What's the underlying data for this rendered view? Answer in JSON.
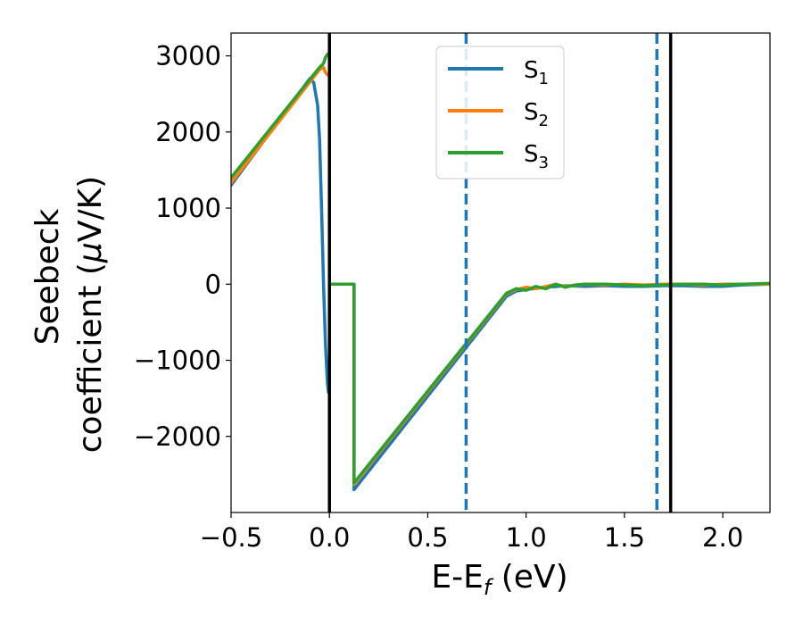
{
  "chart_data": {
    "type": "line",
    "title": "",
    "xlabel": "E-E",
    "xlabel_sub": "f",
    "xlabel_unit": " (eV)",
    "ylabel_line1": "Seebeck",
    "ylabel_line2": "coefficient  (",
    "ylabel_mu": "μ",
    "ylabel_unit": "V/K)",
    "xlim": [
      -0.5,
      2.24
    ],
    "ylim": [
      -3000,
      3300
    ],
    "x_ticks": [
      -0.5,
      0.0,
      0.5,
      1.0,
      1.5,
      2.0
    ],
    "x_tick_labels": [
      "−0.5",
      "0.0",
      "0.5",
      "1.0",
      "1.5",
      "2.0"
    ],
    "y_ticks": [
      -2000,
      -1000,
      0,
      1000,
      2000,
      3000
    ],
    "y_tick_labels": [
      "−2000",
      "−1000",
      "0",
      "1000",
      "2000",
      "3000"
    ],
    "grid": false,
    "legend_position": "top-center",
    "vlines": [
      {
        "x": 0.0,
        "style": "solid",
        "color": "#000000"
      },
      {
        "x": 1.735,
        "style": "solid",
        "color": "#000000"
      },
      {
        "x": 0.695,
        "style": "dashed",
        "color": "#1f77b4"
      },
      {
        "x": 1.665,
        "style": "dashed",
        "color": "#1f77b4"
      }
    ],
    "series": [
      {
        "name": "S",
        "sub": "1",
        "color": "#1f77b4",
        "x": [
          -0.5,
          -0.1,
          -0.08,
          -0.06,
          -0.05,
          -0.04,
          -0.03,
          -0.02,
          -0.01,
          -0.005
        ],
        "y": [
          1300,
          2700,
          2650,
          2350,
          1900,
          1000,
          0,
          -800,
          -1300,
          -1420
        ],
        "x2": [
          0.0,
          0.125,
          0.125,
          0.9,
          0.95,
          1.0,
          1.1,
          1.2,
          1.3,
          1.4,
          1.5,
          1.6,
          1.7,
          1.8,
          1.9,
          2.0,
          2.1,
          2.24
        ],
        "y2": [
          0,
          0,
          -2700,
          -160,
          -90,
          -70,
          -40,
          -20,
          -30,
          -20,
          -30,
          -30,
          -20,
          -20,
          -30,
          -30,
          -10,
          0
        ]
      },
      {
        "name": "S",
        "sub": "2",
        "color": "#ff7f0e",
        "x": [
          -0.5,
          -0.05,
          -0.03,
          -0.02,
          -0.01,
          0.0
        ],
        "y": [
          1330,
          2820,
          2850,
          2780,
          2750,
          2770
        ],
        "x2": [
          0.0,
          0.125,
          0.125,
          0.9,
          0.95,
          1.0,
          1.05,
          1.1,
          1.15,
          1.2,
          1.3,
          1.4,
          1.5,
          1.6,
          1.7,
          1.8,
          1.9,
          2.0,
          2.1,
          2.24
        ],
        "y2": [
          0,
          0,
          -2630,
          -130,
          -70,
          -40,
          -60,
          -30,
          0,
          -30,
          0,
          -10,
          0,
          -10,
          0,
          0,
          -10,
          0,
          0,
          0
        ]
      },
      {
        "name": "S",
        "sub": "3",
        "color": "#2ca02c",
        "x": [
          -0.5,
          -0.05,
          -0.03,
          -0.02,
          -0.01,
          0.0
        ],
        "y": [
          1400,
          2850,
          2900,
          2980,
          3020,
          3030
        ],
        "x2": [
          0.0,
          0.125,
          0.125,
          0.9,
          0.95,
          1.0,
          1.05,
          1.1,
          1.15,
          1.2,
          1.25,
          1.3,
          1.4,
          1.5,
          1.6,
          1.7,
          1.8,
          1.9,
          2.0,
          2.1,
          2.24
        ],
        "y2": [
          0,
          0,
          -2610,
          -120,
          -60,
          -80,
          -30,
          -60,
          0,
          -40,
          -10,
          0,
          0,
          -10,
          -20,
          -10,
          0,
          0,
          -10,
          0,
          10
        ]
      }
    ]
  }
}
